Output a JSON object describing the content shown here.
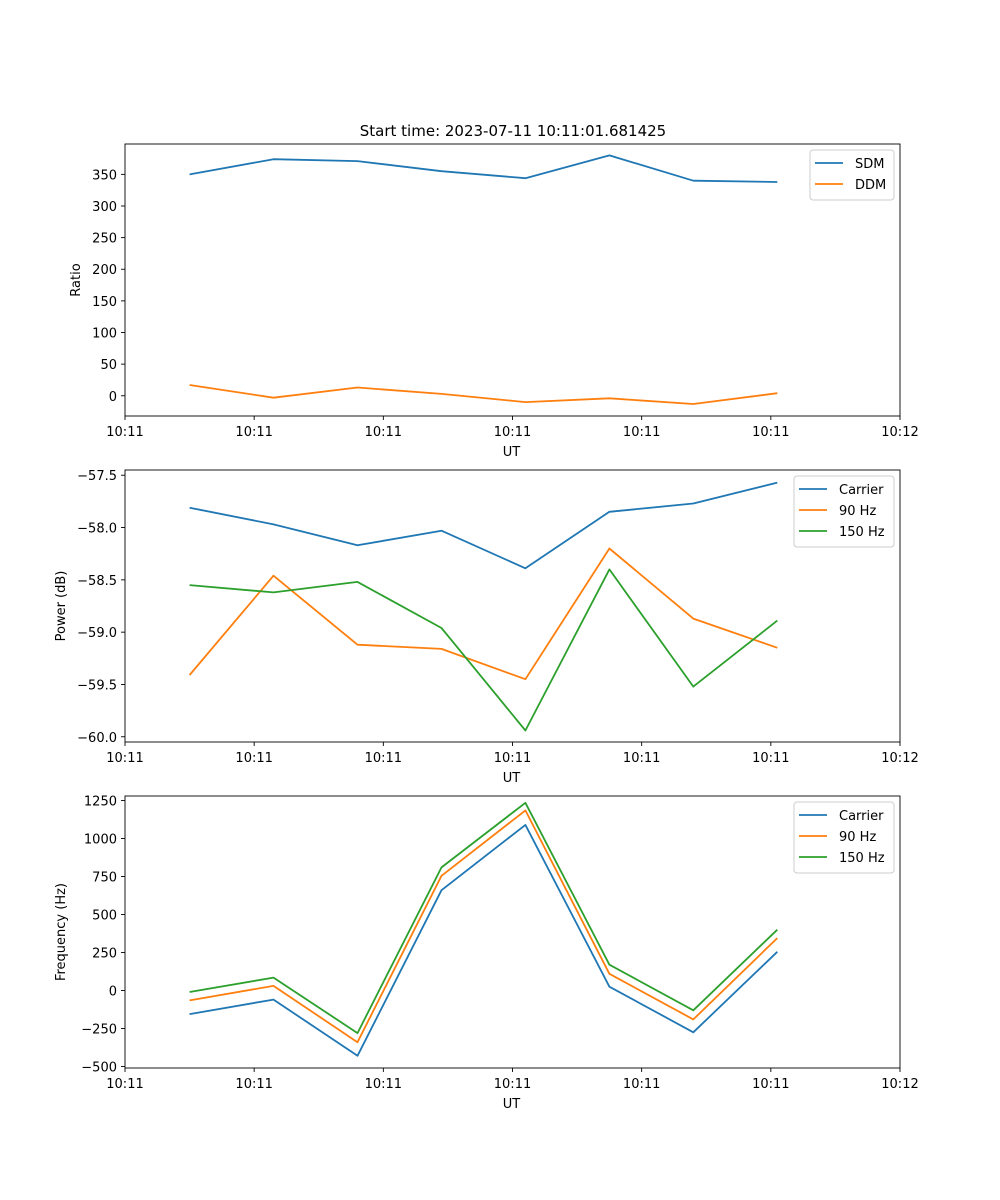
{
  "title": "Start time: 2023-07-11 10:11:01.681425",
  "colors": {
    "c0": "#1f77b4",
    "c1": "#ff7f0e",
    "c2": "#2ca02c"
  },
  "chart_data": [
    {
      "type": "line",
      "title": "Start time: 2023-07-11 10:11:01.681425",
      "xlabel": "UT",
      "ylabel": "Ratio",
      "xlim": [
        0.0,
        6.0
      ],
      "x": [
        0.5,
        1.15,
        1.8,
        2.45,
        3.1,
        3.75,
        4.4,
        5.05
      ],
      "xticks": [
        0,
        1,
        2,
        3,
        4,
        5,
        6
      ],
      "xtick_labels": [
        "10:11",
        "10:11",
        "10:11",
        "10:11",
        "10:11",
        "10:11",
        "10:12"
      ],
      "ylim": [
        -32,
        398
      ],
      "yticks": [
        0,
        50,
        100,
        150,
        200,
        250,
        300,
        350
      ],
      "ytick_labels": [
        "0",
        "50",
        "100",
        "150",
        "200",
        "250",
        "300",
        "350"
      ],
      "legend": "top-right",
      "series": [
        {
          "name": "SDM",
          "color": "#1f77b4",
          "values": [
            350,
            374,
            371,
            355,
            344,
            380,
            340,
            338
          ]
        },
        {
          "name": "DDM",
          "color": "#ff7f0e",
          "values": [
            17,
            -3,
            13,
            3,
            -10,
            -4,
            -13,
            4
          ]
        }
      ]
    },
    {
      "type": "line",
      "xlabel": "UT",
      "ylabel": "Power (dB)",
      "xlim": [
        0.0,
        6.0
      ],
      "x": [
        0.5,
        1.15,
        1.8,
        2.45,
        3.1,
        3.75,
        4.4,
        5.05
      ],
      "xticks": [
        0,
        1,
        2,
        3,
        4,
        5,
        6
      ],
      "xtick_labels": [
        "10:11",
        "10:11",
        "10:11",
        "10:11",
        "10:11",
        "10:11",
        "10:12"
      ],
      "ylim": [
        -60.05,
        -57.45
      ],
      "yticks": [
        -60.0,
        -59.5,
        -59.0,
        -58.5,
        -58.0,
        -57.5
      ],
      "ytick_labels": [
        "−60.0",
        "−59.5",
        "−59.0",
        "−58.5",
        "−58.0",
        "−57.5"
      ],
      "legend": "top-right",
      "series": [
        {
          "name": "Carrier",
          "color": "#1f77b4",
          "values": [
            -57.81,
            -57.97,
            -58.17,
            -58.03,
            -58.39,
            -57.85,
            -57.77,
            -57.57
          ]
        },
        {
          "name": "90 Hz",
          "color": "#ff7f0e",
          "values": [
            -59.41,
            -58.46,
            -59.12,
            -59.16,
            -59.45,
            -58.2,
            -58.87,
            -59.15
          ]
        },
        {
          "name": "150 Hz",
          "color": "#2ca02c",
          "values": [
            -58.55,
            -58.62,
            -58.52,
            -58.96,
            -59.94,
            -58.4,
            -59.52,
            -58.89
          ]
        }
      ]
    },
    {
      "type": "line",
      "xlabel": "UT",
      "ylabel": "Frequency (Hz)",
      "xlim": [
        0.0,
        6.0
      ],
      "x": [
        0.5,
        1.15,
        1.8,
        2.45,
        3.1,
        3.75,
        4.4,
        5.05
      ],
      "xticks": [
        0,
        1,
        2,
        3,
        4,
        5,
        6
      ],
      "xtick_labels": [
        "10:11",
        "10:11",
        "10:11",
        "10:11",
        "10:11",
        "10:11",
        "10:12"
      ],
      "ylim": [
        -510,
        1280
      ],
      "yticks": [
        -500,
        -250,
        0,
        250,
        500,
        750,
        1000,
        1250
      ],
      "ytick_labels": [
        "−500",
        "−250",
        "0",
        "250",
        "500",
        "750",
        "1000",
        "1250"
      ],
      "legend": "top-right",
      "series": [
        {
          "name": "Carrier",
          "color": "#1f77b4",
          "values": [
            -155,
            -60,
            -430,
            660,
            1090,
            25,
            -275,
            255
          ]
        },
        {
          "name": "90 Hz",
          "color": "#ff7f0e",
          "values": [
            -65,
            30,
            -340,
            755,
            1185,
            110,
            -190,
            345
          ]
        },
        {
          "name": "150 Hz",
          "color": "#2ca02c",
          "values": [
            -10,
            85,
            -280,
            810,
            1235,
            170,
            -130,
            400
          ]
        }
      ]
    }
  ]
}
